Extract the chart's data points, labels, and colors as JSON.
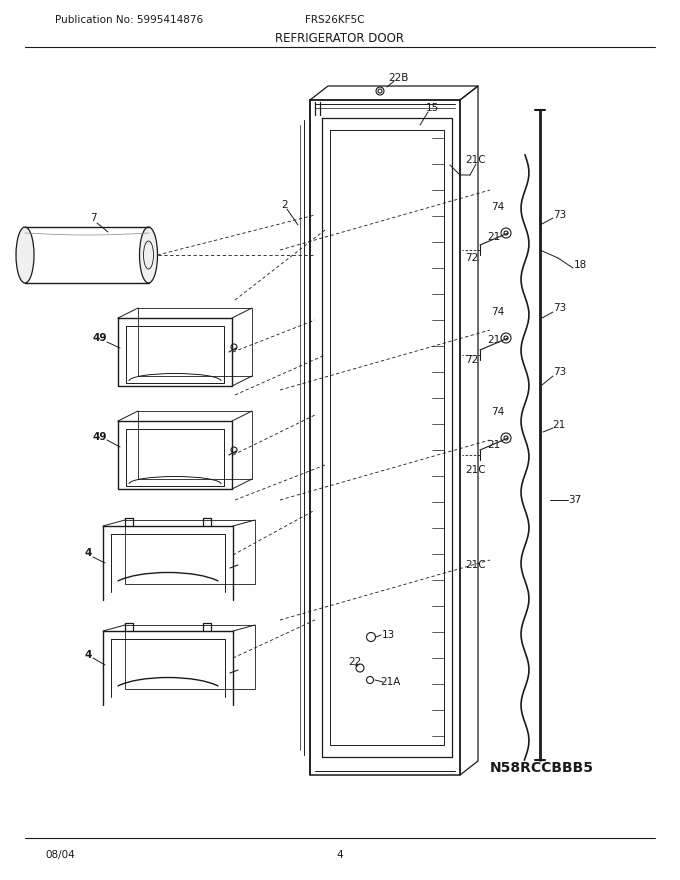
{
  "title": "REFRIGERATOR DOOR",
  "pub_no": "Publication No: 5995414876",
  "model": "FRS26KF5C",
  "part_code": "N58RCCBBB5",
  "date": "08/04",
  "page": "4",
  "bg_color": "#ffffff",
  "text_color": "#000000"
}
